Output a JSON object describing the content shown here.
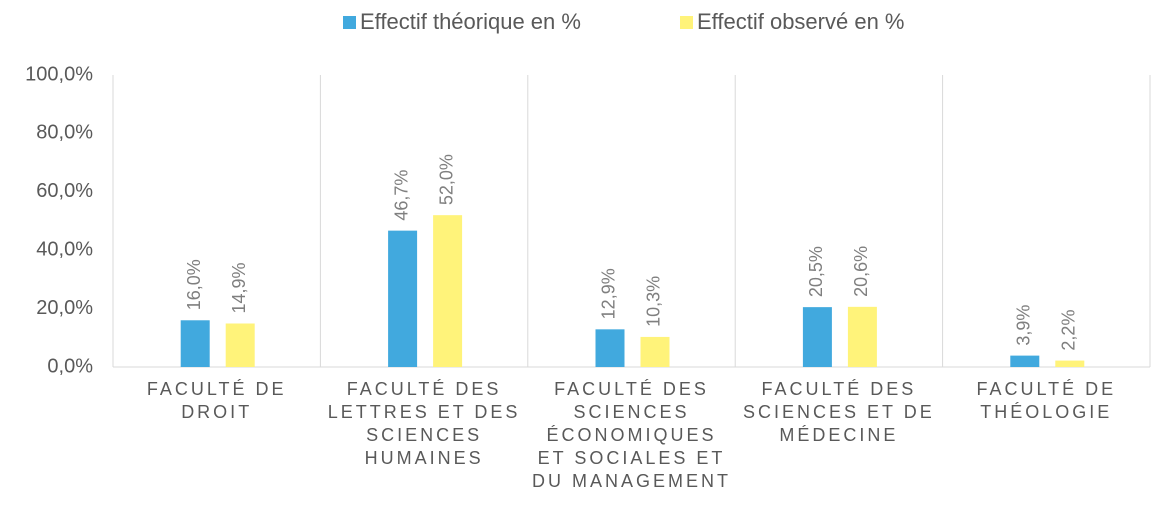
{
  "chart_data": {
    "type": "bar",
    "categories": [
      "FACULTÉ DE DROIT",
      "FACULTÉ DES LETTRES ET DES SCIENCES HUMAINES",
      "FACULTÉ DES SCIENCES ÉCONOMIQUES ET SOCIALES ET DU MANAGEMENT",
      "FACULTÉ DES SCIENCES ET DE MÉDECINE",
      "FACULTÉ DE THÉOLOGIE"
    ],
    "series": [
      {
        "name": "Effectif théorique en %",
        "color": "#41a9de",
        "values": [
          16.0,
          46.7,
          12.9,
          20.5,
          3.9
        ],
        "value_labels": [
          "16,0%",
          "46,7%",
          "12,9%",
          "20,5%",
          "3,9%"
        ]
      },
      {
        "name": "Effectif observé en %",
        "color": "#fff37a",
        "values": [
          14.9,
          52.0,
          10.3,
          20.6,
          2.2
        ],
        "value_labels": [
          "14,9%",
          "52,0%",
          "10,3%",
          "20,6%",
          "2,2%"
        ]
      }
    ],
    "ylim": [
      0,
      100
    ],
    "yticks": [
      {
        "value": 0,
        "label": "0,0%"
      },
      {
        "value": 20,
        "label": "20,0%"
      },
      {
        "value": 40,
        "label": "40,0%"
      },
      {
        "value": 60,
        "label": "60,0%"
      },
      {
        "value": 80,
        "label": "80,0%"
      },
      {
        "value": 100,
        "label": "100,0%"
      }
    ],
    "grid": false,
    "legend": "top"
  }
}
